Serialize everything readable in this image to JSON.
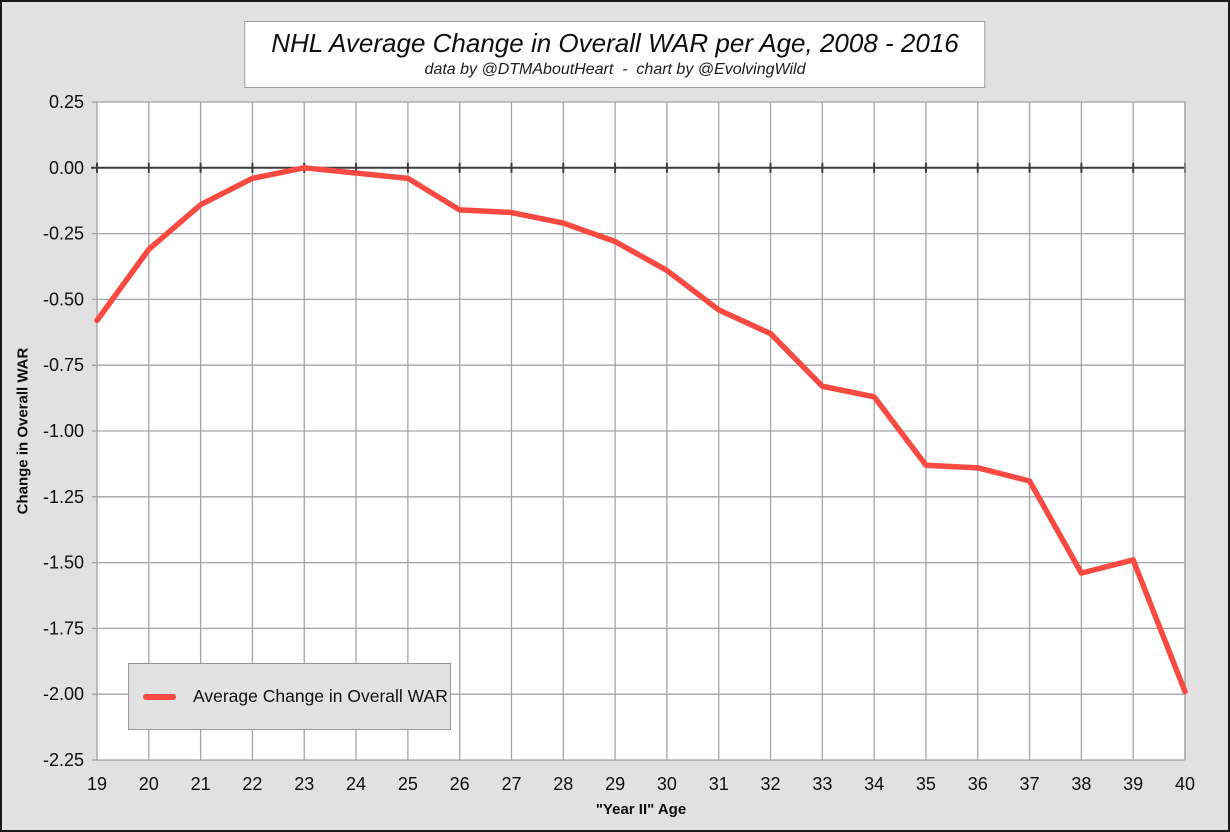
{
  "header": {
    "title": "NHL Average Change in Overall WAR per Age, 2008 - 2016",
    "subtitle": "data by @DTMAboutHeart  -  chart by @EvolvingWild"
  },
  "legend": {
    "label": "Average Change in Overall WAR"
  },
  "colors": {
    "background": "#e1e1e1",
    "plot_background": "#ffffff",
    "gridline": "#a4a4a4",
    "zero_line": "#3d3d3d",
    "series_red": "#fb4a41",
    "text": "#0f0f0f",
    "box_border": "#9b9b9b"
  },
  "chart_data": {
    "type": "line",
    "title": "NHL Average Change in Overall WAR per Age, 2008 - 2016",
    "subtitle": "data by @DTMAboutHeart  -  chart by @EvolvingWild",
    "xlabel": "\"Year II\" Age",
    "ylabel": "Change in Overall WAR",
    "x": [
      19,
      20,
      21,
      22,
      23,
      24,
      25,
      26,
      27,
      28,
      29,
      30,
      31,
      32,
      33,
      34,
      35,
      36,
      37,
      38,
      39,
      40
    ],
    "series": [
      {
        "name": "Average Change in Overall WAR",
        "color": "#fb4a41",
        "values": [
          -0.58,
          -0.31,
          -0.14,
          -0.04,
          0.0,
          -0.02,
          -0.04,
          -0.16,
          -0.17,
          -0.21,
          -0.28,
          -0.39,
          -0.54,
          -0.63,
          -0.83,
          -0.87,
          -1.13,
          -1.14,
          -1.19,
          -1.54,
          -1.49,
          -1.99
        ]
      }
    ],
    "xlim": [
      19,
      40
    ],
    "ylim": [
      -2.25,
      0.25
    ],
    "ytick_step": 0.25,
    "ytick_labels": [
      "0.25",
      "0.00",
      "-0.25",
      "-0.50",
      "-0.75",
      "-1.00",
      "-1.25",
      "-1.50",
      "-1.75",
      "-2.00",
      "-2.25"
    ],
    "grid": true,
    "zero_line": true,
    "legend_position": "bottom-left"
  }
}
